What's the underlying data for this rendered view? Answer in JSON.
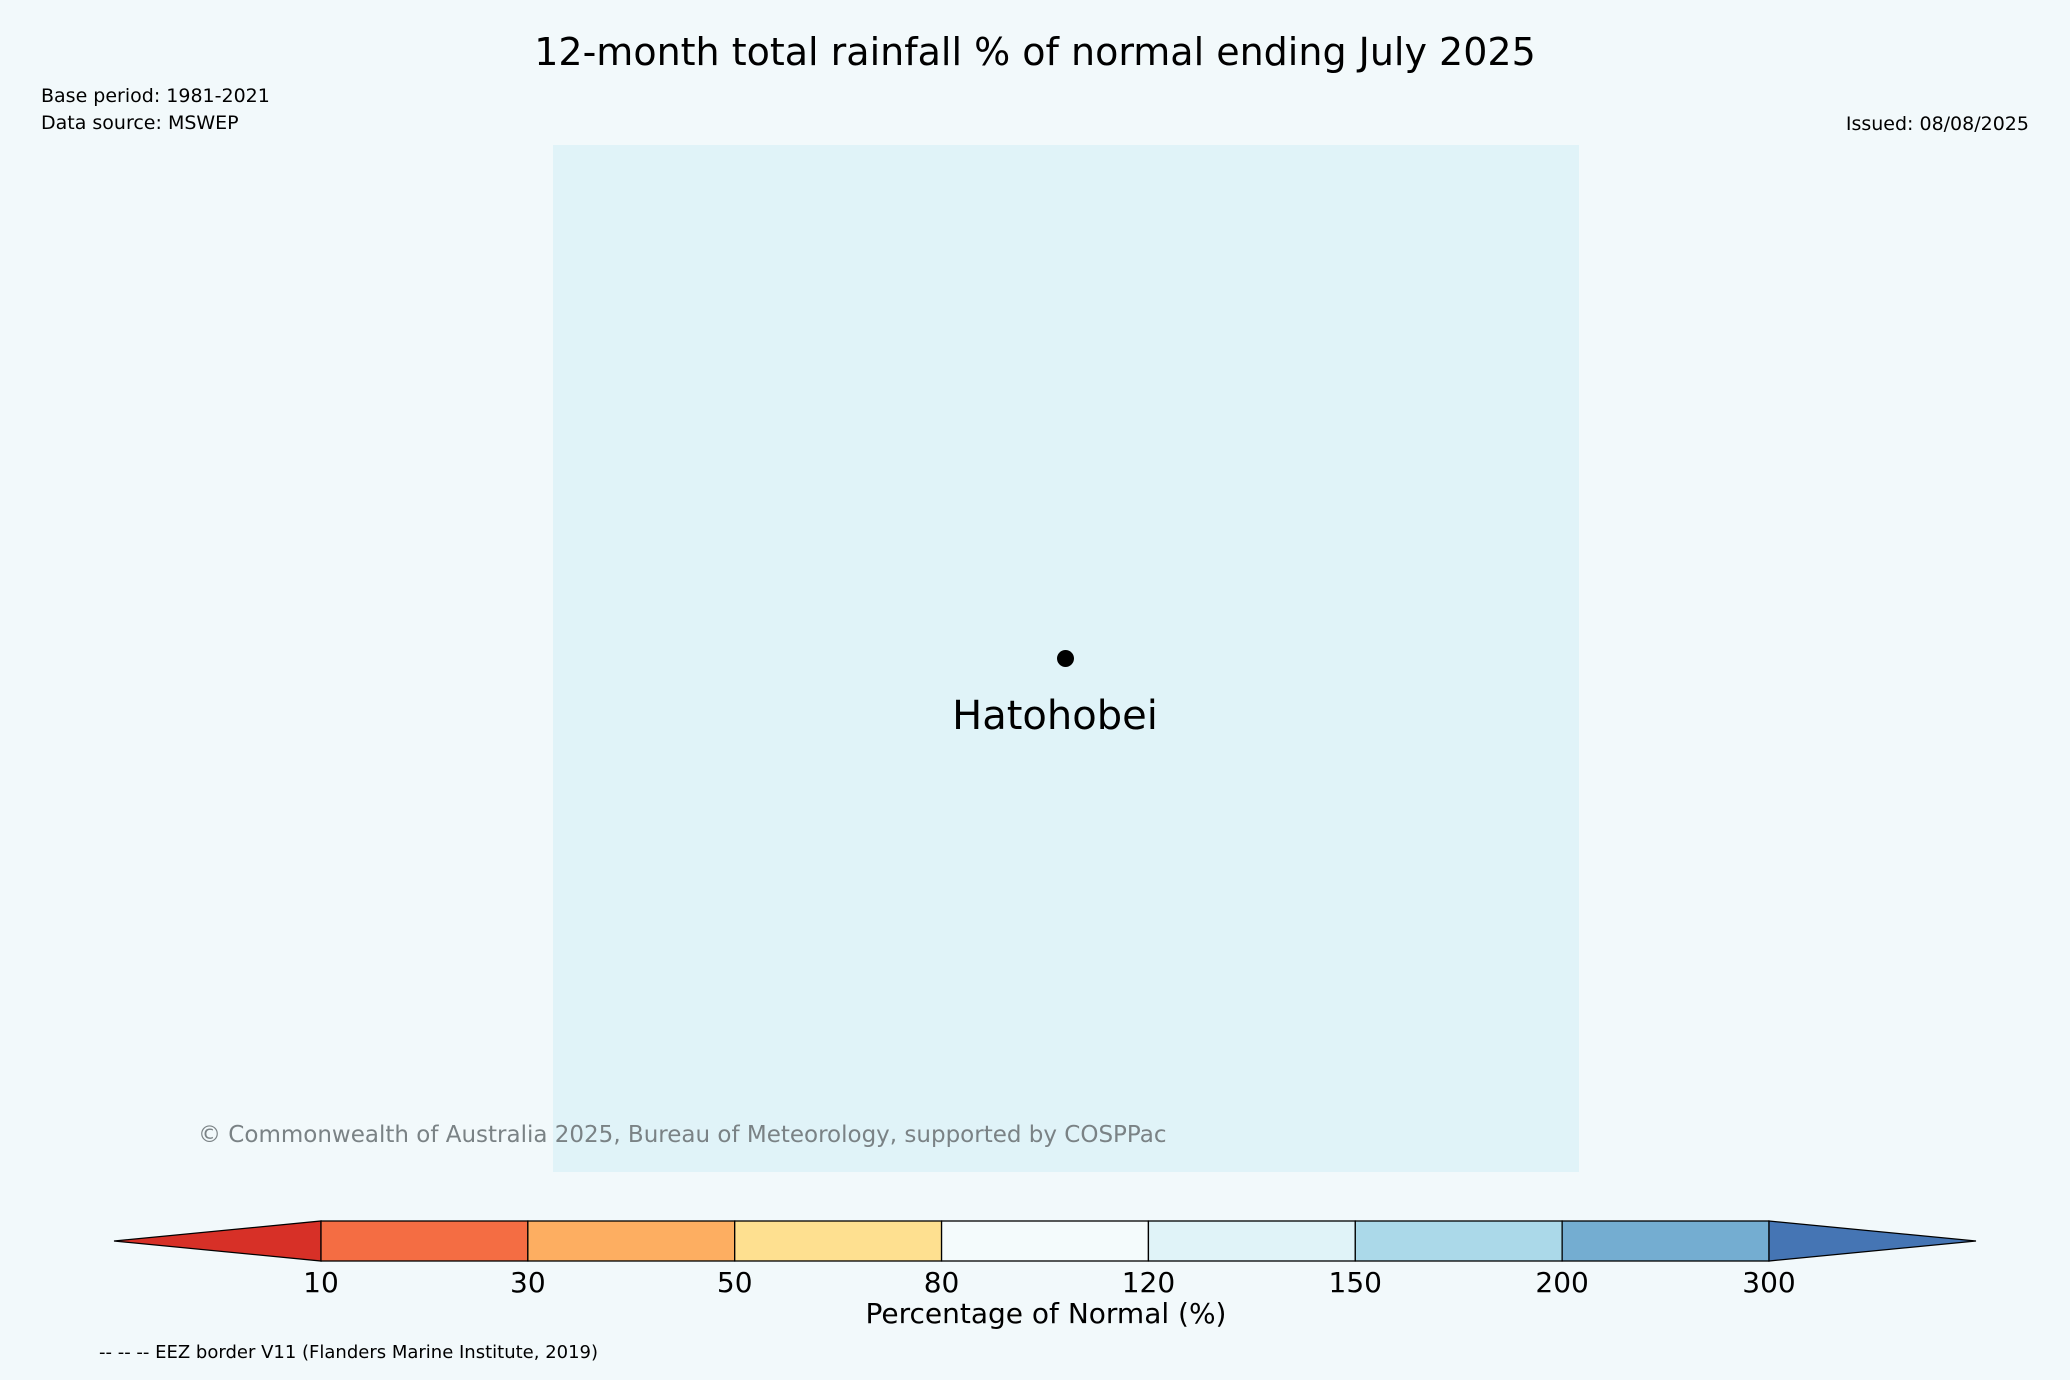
{
  "header": {
    "title": "12-month total rainfall % of normal ending July 2025",
    "base_period": "Base period: 1981-2021",
    "data_source": "Data source: MSWEP",
    "issued": "Issued: 08/08/2025"
  },
  "map": {
    "background_color": "#e0f3f8",
    "place": {
      "name": "Hatohobei",
      "marker": "filled-circle"
    }
  },
  "copyright": "© Commonwealth of Australia 2025, Bureau of Meteorology, supported by COSPPac",
  "legend": {
    "label": "Percentage of Normal (%)",
    "ticks": [
      "10",
      "30",
      "50",
      "80",
      "120",
      "150",
      "200",
      "300"
    ],
    "colors": [
      "#d73027",
      "#f46d43",
      "#fdae61",
      "#fee090",
      "#f4fbfc",
      "#e0f3f8",
      "#abd9e9",
      "#74add1",
      "#4575b4"
    ],
    "extend": "both"
  },
  "footer": {
    "eez_note": "-- -- -- EEZ border V11 (Flanders Marine Institute, 2019)"
  }
}
